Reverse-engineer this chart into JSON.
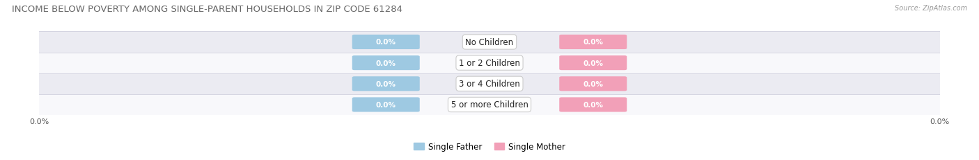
{
  "title": "INCOME BELOW POVERTY AMONG SINGLE-PARENT HOUSEHOLDS IN ZIP CODE 61284",
  "source_text": "Source: ZipAtlas.com",
  "categories": [
    "No Children",
    "1 or 2 Children",
    "3 or 4 Children",
    "5 or more Children"
  ],
  "father_values": [
    0.0,
    0.0,
    0.0,
    0.0
  ],
  "mother_values": [
    0.0,
    0.0,
    0.0,
    0.0
  ],
  "father_color": "#9ec9e2",
  "mother_color": "#f2a0b8",
  "title_fontsize": 9.5,
  "source_fontsize": 7,
  "label_fontsize": 7.5,
  "category_fontsize": 8.5,
  "axis_label": "0.0%",
  "background_color": "#ffffff",
  "row_bg_colors": [
    "#ebebf2",
    "#f8f8fb",
    "#ebebf2",
    "#f8f8fb"
  ],
  "bar_height": 0.6,
  "legend_father": "Single Father",
  "legend_mother": "Single Mother",
  "x_min": -10,
  "x_max": 10
}
